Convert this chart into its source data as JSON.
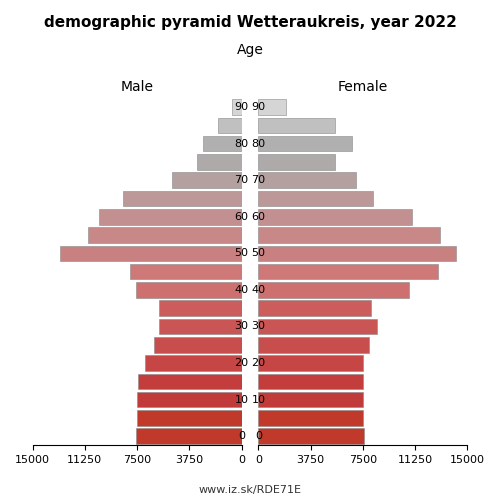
{
  "title": "demographic pyramid Wetteraukreis, year 2022",
  "male_label": "Male",
  "female_label": "Female",
  "age_label": "Age",
  "url_text": "www.iz.sk/RDE71E",
  "age_groups": [
    "0",
    "",
    "10",
    "",
    "20",
    "",
    "30",
    "",
    "40",
    "",
    "50",
    "",
    "60",
    "",
    "70",
    "",
    "80",
    "",
    "90"
  ],
  "age_ticks": [
    0,
    1,
    2,
    3,
    4,
    5,
    6,
    7,
    8,
    9,
    10,
    11,
    12,
    13,
    14,
    15,
    16,
    17,
    18
  ],
  "male_values": [
    7600,
    7500,
    7500,
    7450,
    6900,
    6300,
    5900,
    5900,
    7600,
    8000,
    13000,
    11000,
    10200,
    8500,
    5000,
    3200,
    2800,
    1700,
    700
  ],
  "female_values": [
    7600,
    7500,
    7500,
    7500,
    7500,
    7900,
    8500,
    8100,
    10800,
    12900,
    14200,
    13000,
    11000,
    8200,
    7000,
    5500,
    6700,
    5500,
    2000
  ],
  "male_colors": [
    "#cd3333",
    "#cd3333",
    "#cd3333",
    "#cd3333",
    "#cd4444",
    "#cd4444",
    "#d05555",
    "#d05555",
    "#c97070",
    "#c97070",
    "#c98080",
    "#c98080",
    "#c99090",
    "#c99090",
    "#c0a0a0",
    "#c0a0a0",
    "#b8b0b0",
    "#b8b0b0",
    "#d0d0d0"
  ],
  "female_colors": [
    "#cd3333",
    "#cd3333",
    "#cd3333",
    "#cd3333",
    "#cd4444",
    "#cd4444",
    "#d05555",
    "#d05555",
    "#c97070",
    "#c97070",
    "#c98080",
    "#c98080",
    "#c99090",
    "#c99090",
    "#c0a0a0",
    "#c0a0a0",
    "#b8b0b0",
    "#b8b0b0",
    "#d0d0d0"
  ],
  "xlim": 15000,
  "xticks": [
    0,
    3750,
    7500,
    11250,
    15000
  ],
  "xtick_labels": [
    "15000",
    "11250",
    "7500",
    "3750",
    "0",
    "0",
    "3750",
    "7500",
    "11250",
    "15000"
  ],
  "bar_height": 0.85,
  "background_color": "#ffffff"
}
